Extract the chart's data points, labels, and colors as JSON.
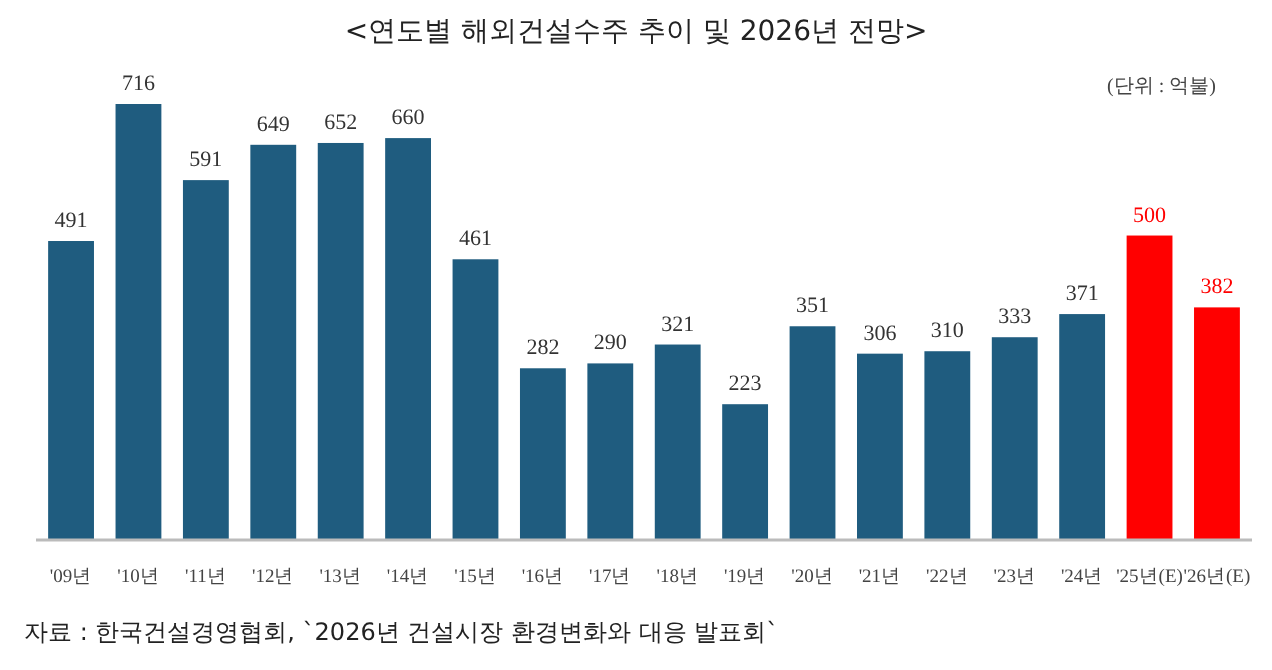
{
  "chart_data": {
    "type": "bar",
    "title": "<연도별 해외건설수주 추이 및 2026년 전망>",
    "ylabel": "(단위 : 억불)",
    "categories": [
      "'09년",
      "'10년",
      "'11년",
      "'12년",
      "'13년",
      "'14년",
      "'15년",
      "'16년",
      "'17년",
      "'18년",
      "'19년",
      "'20년",
      "'21년",
      "'22년",
      "'23년",
      "'24년",
      "'25년(E)",
      "'26년(E)"
    ],
    "values": [
      491,
      716,
      591,
      649,
      652,
      660,
      461,
      282,
      290,
      321,
      223,
      351,
      306,
      310,
      333,
      371,
      500,
      382
    ],
    "colors": [
      "#1f5c7f",
      "#1f5c7f",
      "#1f5c7f",
      "#1f5c7f",
      "#1f5c7f",
      "#1f5c7f",
      "#1f5c7f",
      "#1f5c7f",
      "#1f5c7f",
      "#1f5c7f",
      "#1f5c7f",
      "#1f5c7f",
      "#1f5c7f",
      "#1f5c7f",
      "#1f5c7f",
      "#1f5c7f",
      "#ff0000",
      "#ff0000"
    ],
    "data_labels": true,
    "annotations": [
      "자료 : 한국건설경영협회, `2026년 건설시장 환경변화와 대응 발표회`"
    ]
  }
}
